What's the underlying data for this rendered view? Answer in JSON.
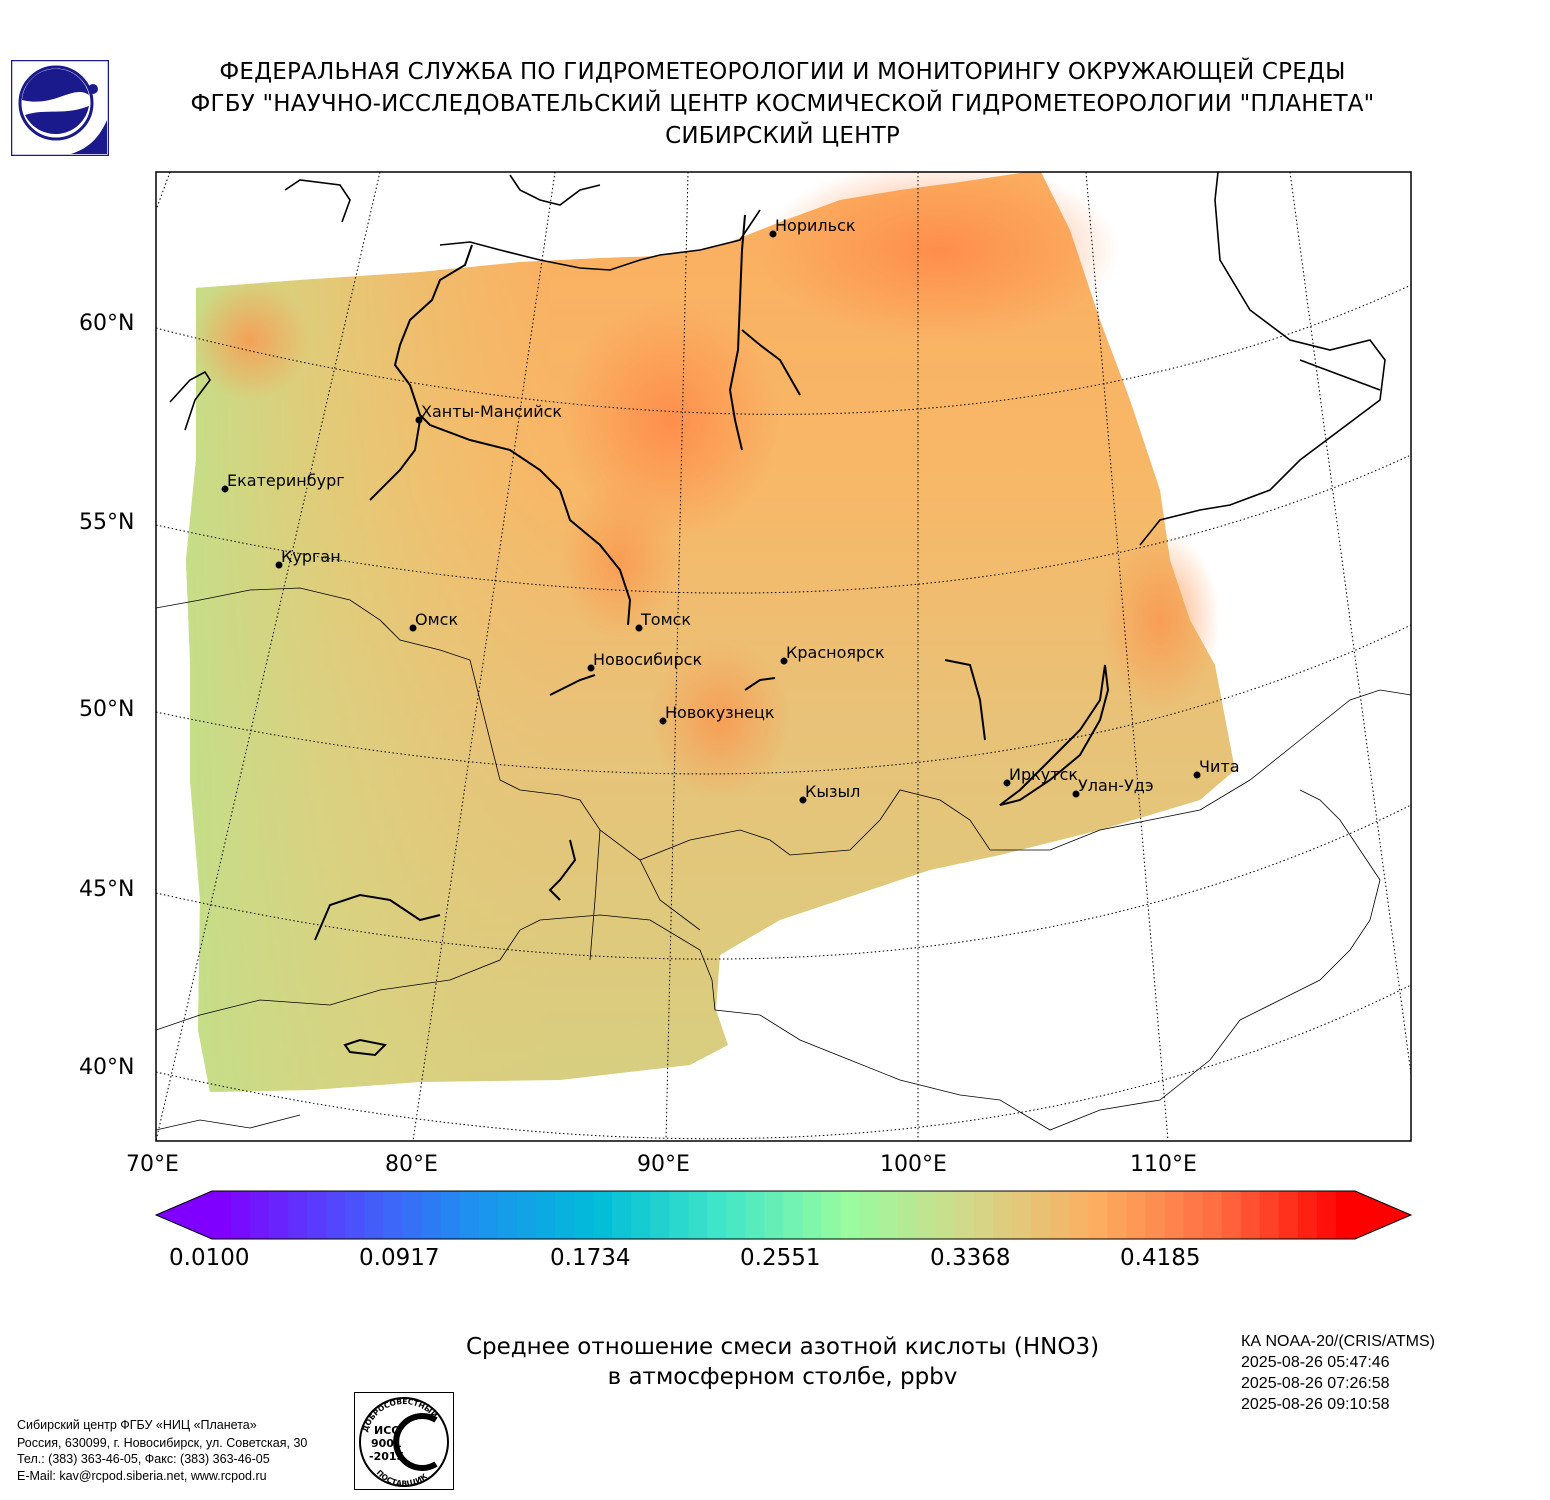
{
  "header": {
    "line1": "ФЕДЕРАЛЬНАЯ СЛУЖБА ПО ГИДРОМЕТЕОРОЛОГИИ И МОНИТОРИНГУ ОКРУЖАЮЩЕЙ СРЕДЫ",
    "line2": "ФГБУ \"НАУЧНО-ИССЛЕДОВАТЕЛЬСКИЙ ЦЕНТР КОСМИЧЕСКОЙ ГИДРОМЕТЕОРОЛОГИИ \"ПЛАНЕТА\"",
    "line3": "СИБИРСКИЙ ЦЕНТР"
  },
  "map": {
    "latitude_labels": [
      "60°N",
      "55°N",
      "50°N",
      "45°N",
      "40°N"
    ],
    "longitude_labels": [
      "70°E",
      "80°E",
      "90°E",
      "100°E",
      "110°E"
    ],
    "cities": [
      "Норильск",
      "Ханты-Мансийск",
      "Екатеринбург",
      "Курган",
      "Омск",
      "Томск",
      "Новосибирск",
      "Красноярск",
      "Новокузнецк",
      "Кызыл",
      "Иркутск",
      "Улан-Удэ",
      "Чита"
    ]
  },
  "colorbar": {
    "tick_labels": [
      "0.0100",
      "0.0917",
      "0.1734",
      "0.2551",
      "0.3368",
      "0.4185"
    ],
    "min": 0.01,
    "max": 0.5,
    "colors": [
      "#7f00ff",
      "#4e4efc",
      "#1e90f0",
      "#00bcd8",
      "#40e6c8",
      "#98fca0",
      "#d4d88a",
      "#fcae60",
      "#ff6a40",
      "#ff0000"
    ]
  },
  "caption": {
    "line1": "Среднее отношение смеси азотной кислоты (HNO3)",
    "line2": "в атмосферном столбе, ppbv"
  },
  "satellite": {
    "name": "КА NOAA-20/(CRIS/ATMS)",
    "times": [
      "2025-08-26 05:47:46",
      "2025-08-26 07:26:58",
      "2025-08-26 09:10:58"
    ]
  },
  "footer": {
    "address": [
      "Сибирский центр ФГБУ «НИЦ «Планета»",
      "Россия, 630099, г. Новосибирск, ул. Советская, 30",
      "Тел.: (383) 363-46-05, Факс: (383) 363-46-05",
      "E-Mail: kav@rcpod.siberia.net, www.rcpod.ru"
    ],
    "iso": {
      "arc_top": "ДОБРОСОВЕСТНЫЙ",
      "l1": "ИСО",
      "l2": "9001",
      "l3": "-2015",
      "arc_bottom": "ПОСТАВЩИК"
    }
  }
}
